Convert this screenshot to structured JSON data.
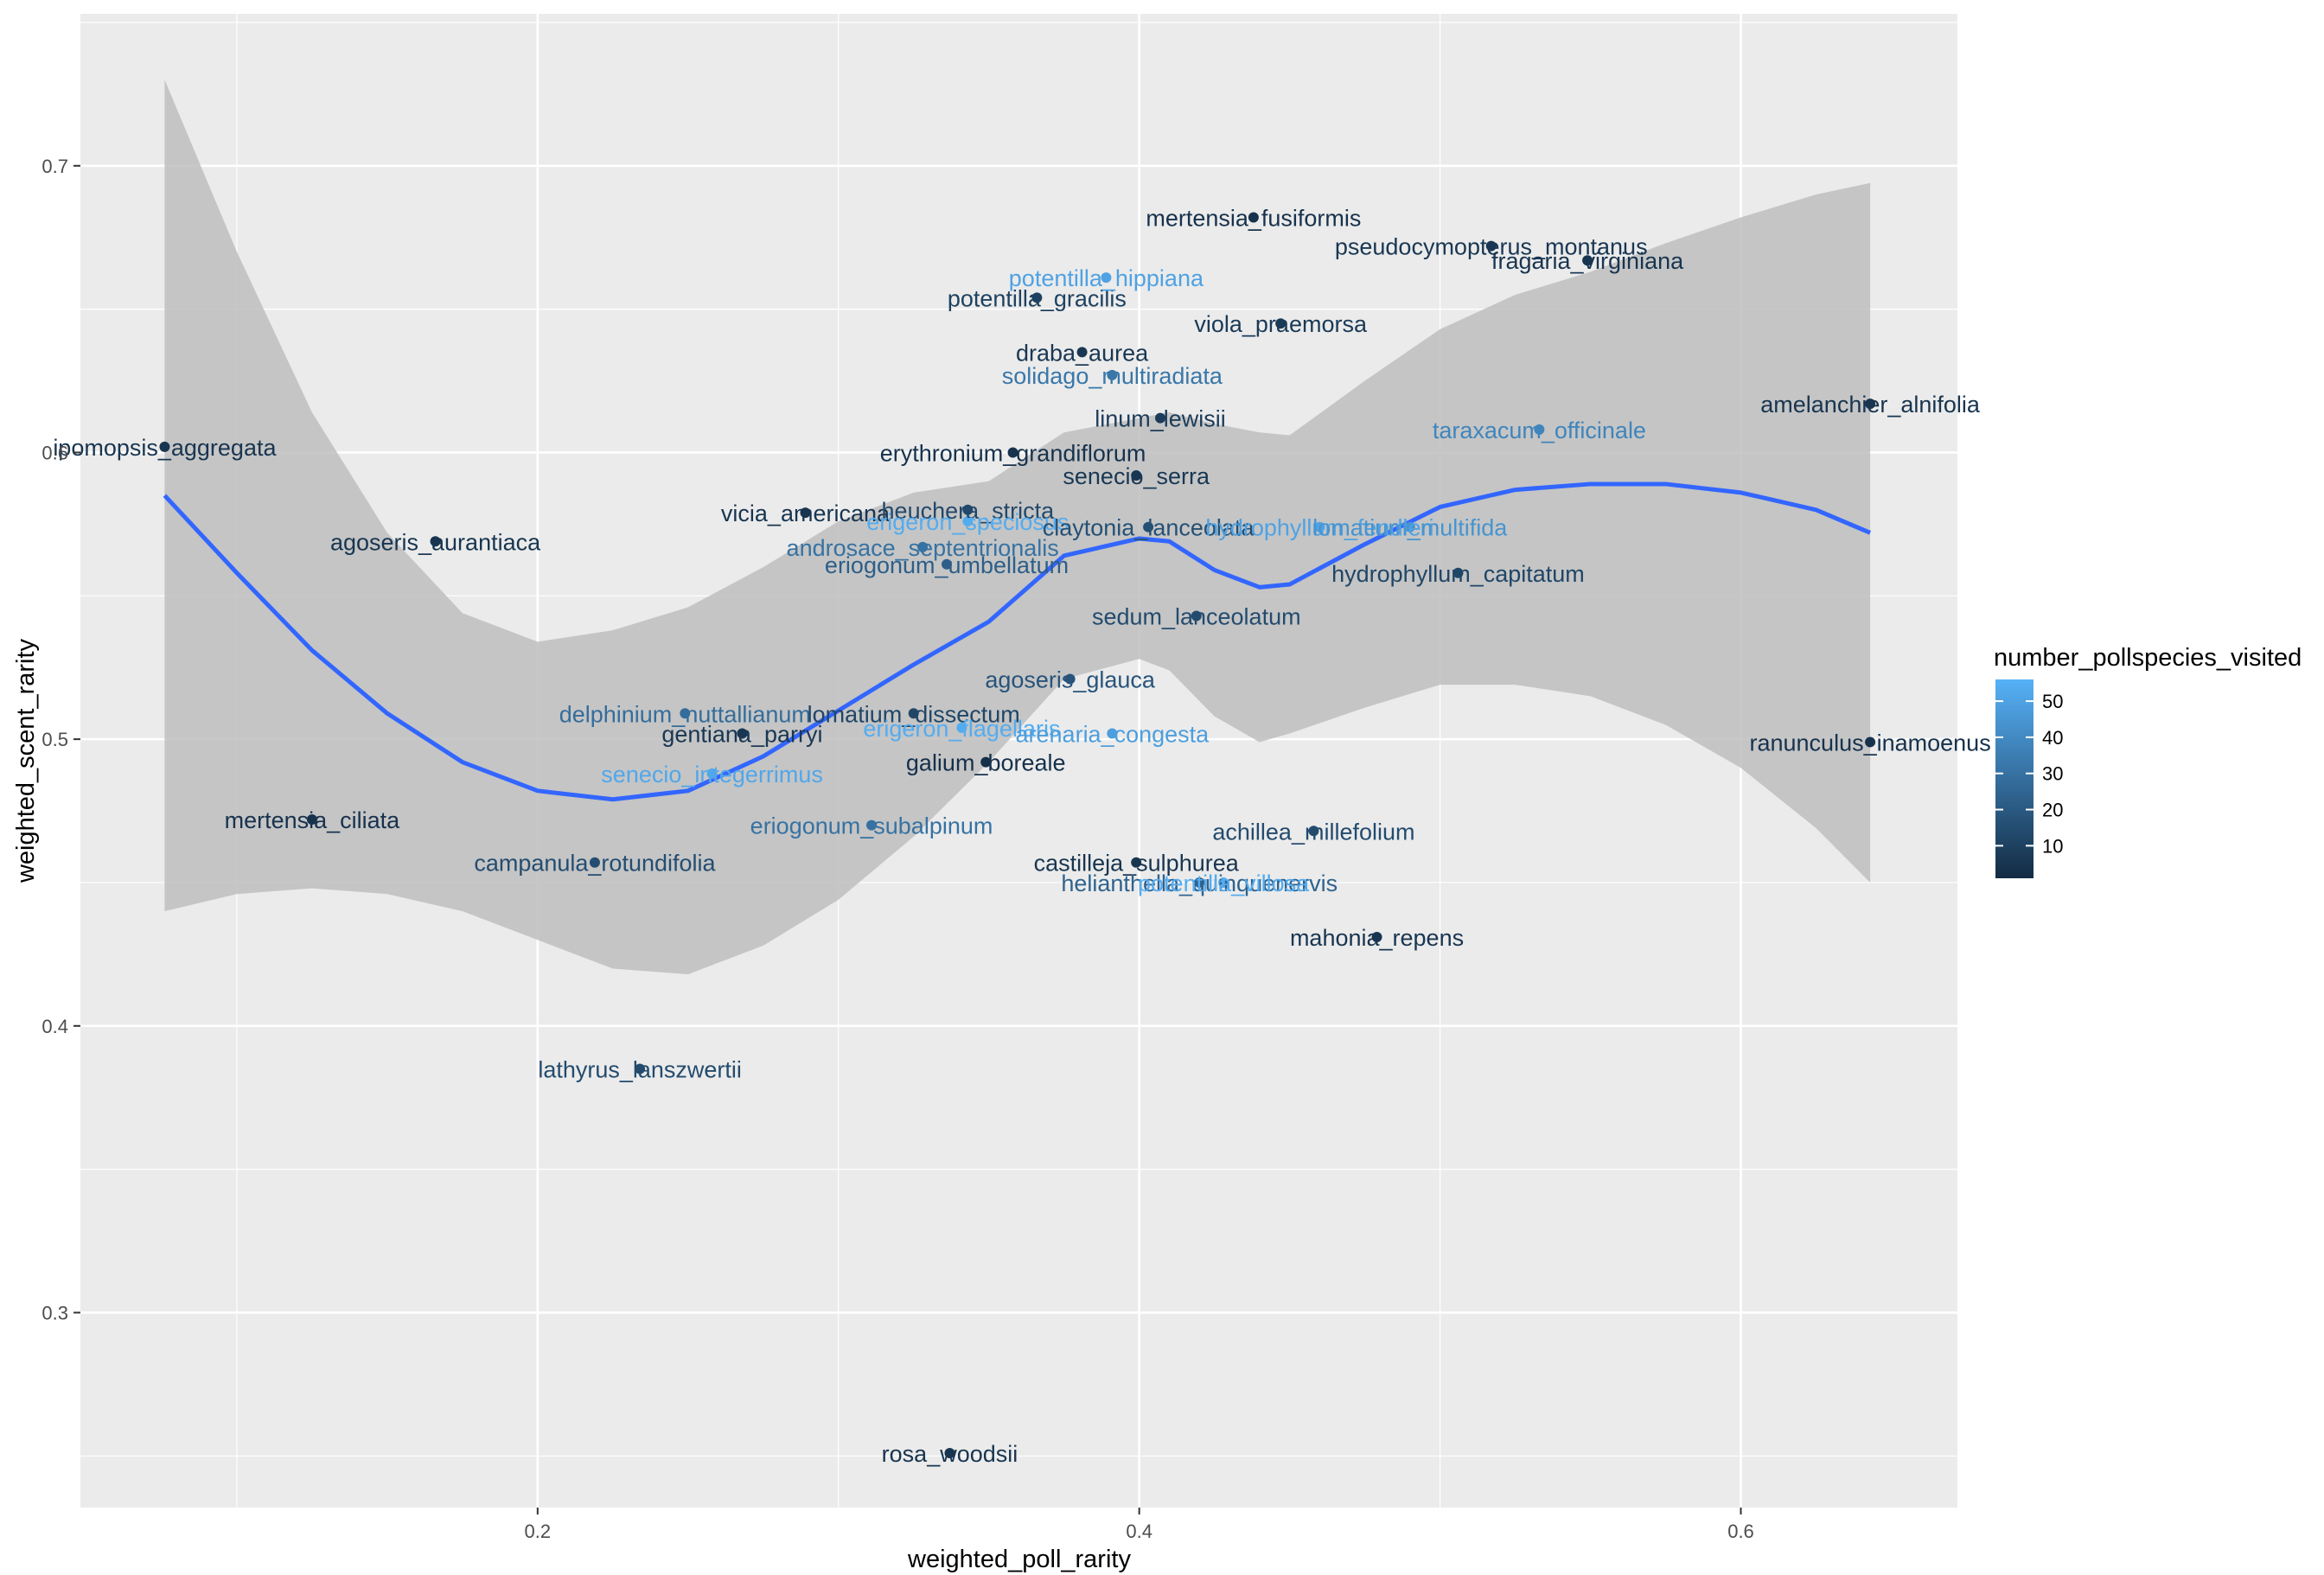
{
  "chart_data": {
    "type": "scatter",
    "xlabel": "weighted_poll_rarity",
    "ylabel": "weighted_scent_rarity",
    "xlim": [
      0.048,
      0.672
    ],
    "ylim": [
      0.232,
      0.753
    ],
    "x_ticks": [
      0.2,
      0.4,
      0.6
    ],
    "x_tick_labels": [
      "0.2",
      "0.4",
      "0.6"
    ],
    "y_ticks": [
      0.3,
      0.4,
      0.5,
      0.6,
      0.7
    ],
    "y_tick_labels": [
      "0.3",
      "0.4",
      "0.5",
      "0.6",
      "0.7"
    ],
    "grid": true,
    "legend": {
      "title": "number_pollspecies_visited",
      "position": "right",
      "min": 1,
      "max": 56,
      "breaks": [
        10,
        20,
        30,
        40,
        50
      ],
      "break_labels": [
        "10",
        "20",
        "30",
        "40",
        "50"
      ],
      "low_color": "#132B43",
      "high_color": "#56B1F7"
    },
    "points": [
      {
        "x": 0.076,
        "y": 0.602,
        "c": 5,
        "label": "ipomopsis_aggregata"
      },
      {
        "x": 0.166,
        "y": 0.569,
        "c": 5,
        "label": "agoseris_aurantiaca"
      },
      {
        "x": 0.125,
        "y": 0.472,
        "c": 4,
        "label": "mertensia_ciliata"
      },
      {
        "x": 0.219,
        "y": 0.457,
        "c": 15,
        "label": "campanula_rotundifolia"
      },
      {
        "x": 0.234,
        "y": 0.385,
        "c": 14,
        "label": "lathyrus_lanszwertii"
      },
      {
        "x": 0.249,
        "y": 0.509,
        "c": 28,
        "label": "delphinium_nuttallianum"
      },
      {
        "x": 0.268,
        "y": 0.502,
        "c": 6,
        "label": "gentiana_parryi"
      },
      {
        "x": 0.258,
        "y": 0.488,
        "c": 52,
        "label": "senecio_integerrimus"
      },
      {
        "x": 0.289,
        "y": 0.579,
        "c": 5,
        "label": "vicia_americana"
      },
      {
        "x": 0.311,
        "y": 0.47,
        "c": 30,
        "label": "eriogonum_subalpinum"
      },
      {
        "x": 0.325,
        "y": 0.509,
        "c": 12,
        "label": "lomatium_dissectum"
      },
      {
        "x": 0.328,
        "y": 0.567,
        "c": 30,
        "label": "androsace_septentrionalis"
      },
      {
        "x": 0.336,
        "y": 0.561,
        "c": 22,
        "label": "eriogonum_umbellatum"
      },
      {
        "x": 0.343,
        "y": 0.58,
        "c": 13,
        "label": "heuchera_stricta"
      },
      {
        "x": 0.343,
        "y": 0.576,
        "c": 54,
        "label": "erigeron_speciosus"
      },
      {
        "x": 0.341,
        "y": 0.504,
        "c": 54,
        "label": "erigeron_flagellaris"
      },
      {
        "x": 0.337,
        "y": 0.251,
        "c": 5,
        "label": "rosa_woodsii"
      },
      {
        "x": 0.349,
        "y": 0.492,
        "c": 3,
        "label": "galium_boreale"
      },
      {
        "x": 0.358,
        "y": 0.6,
        "c": 4,
        "label": "erythronium_grandiflorum"
      },
      {
        "x": 0.366,
        "y": 0.654,
        "c": 10,
        "label": "potentilla_gracilis"
      },
      {
        "x": 0.381,
        "y": 0.635,
        "c": 6,
        "label": "draba_aurea"
      },
      {
        "x": 0.377,
        "y": 0.521,
        "c": 18,
        "label": "agoseris_glauca"
      },
      {
        "x": 0.389,
        "y": 0.661,
        "c": 50,
        "label": "potentilla_hippiana"
      },
      {
        "x": 0.391,
        "y": 0.627,
        "c": 32,
        "label": "solidago_multiradiata"
      },
      {
        "x": 0.391,
        "y": 0.502,
        "c": 48,
        "label": "arenaria_congesta"
      },
      {
        "x": 0.399,
        "y": 0.592,
        "c": 6,
        "label": "senecio_serra"
      },
      {
        "x": 0.399,
        "y": 0.457,
        "c": 5,
        "label": "castilleja_sulphurea"
      },
      {
        "x": 0.403,
        "y": 0.574,
        "c": 16,
        "label": "claytonia_lanceolata"
      },
      {
        "x": 0.407,
        "y": 0.612,
        "c": 8,
        "label": "linum_lewisii"
      },
      {
        "x": 0.419,
        "y": 0.543,
        "c": 14,
        "label": "sedum_lanceolatum"
      },
      {
        "x": 0.42,
        "y": 0.45,
        "c": 24,
        "label": "helianthella_quinquenervis"
      },
      {
        "x": 0.428,
        "y": 0.45,
        "c": 54,
        "label": "potentilla_villosa"
      },
      {
        "x": 0.438,
        "y": 0.682,
        "c": 4,
        "label": "mertensia_fusiformis"
      },
      {
        "x": 0.447,
        "y": 0.645,
        "c": 7,
        "label": "viola_praemorsa"
      },
      {
        "x": 0.458,
        "y": 0.468,
        "c": 14,
        "label": "achillea_millefolium"
      },
      {
        "x": 0.46,
        "y": 0.574,
        "c": 50,
        "label": "hydrophyllum_fendleri"
      },
      {
        "x": 0.479,
        "y": 0.431,
        "c": 5,
        "label": "mahonia_repens"
      },
      {
        "x": 0.49,
        "y": 0.574,
        "c": 44,
        "label": "lomatium_multifida"
      },
      {
        "x": 0.506,
        "y": 0.558,
        "c": 12,
        "label": "hydrophyllum_capitatum"
      },
      {
        "x": 0.517,
        "y": 0.672,
        "c": 6,
        "label": "pseudocymopterus_montanus"
      },
      {
        "x": 0.533,
        "y": 0.608,
        "c": 38,
        "label": "taraxacum_officinale"
      },
      {
        "x": 0.549,
        "y": 0.667,
        "c": 5,
        "label": "fragaria_virginiana"
      },
      {
        "x": 0.643,
        "y": 0.617,
        "c": 5,
        "label": "amelanchier_alnifolia"
      },
      {
        "x": 0.643,
        "y": 0.499,
        "c": 4,
        "label": "ranunculus_inamoenus"
      }
    ],
    "smooth": {
      "method": "loess",
      "color": "#3366FF",
      "ribbon_color": "#BEBEBE",
      "x": [
        0.076,
        0.1,
        0.125,
        0.15,
        0.175,
        0.2,
        0.225,
        0.25,
        0.275,
        0.3,
        0.325,
        0.35,
        0.375,
        0.4,
        0.41,
        0.425,
        0.44,
        0.45,
        0.475,
        0.5,
        0.525,
        0.55,
        0.575,
        0.6,
        0.625,
        0.643
      ],
      "y": [
        0.585,
        0.558,
        0.531,
        0.509,
        0.492,
        0.482,
        0.479,
        0.482,
        0.494,
        0.51,
        0.526,
        0.541,
        0.564,
        0.57,
        0.569,
        0.559,
        0.553,
        0.554,
        0.568,
        0.581,
        0.587,
        0.589,
        0.589,
        0.586,
        0.58,
        0.572
      ],
      "lower": [
        0.44,
        0.446,
        0.448,
        0.446,
        0.44,
        0.43,
        0.42,
        0.418,
        0.428,
        0.444,
        0.466,
        0.492,
        0.521,
        0.528,
        0.524,
        0.508,
        0.499,
        0.502,
        0.511,
        0.519,
        0.519,
        0.515,
        0.505,
        0.49,
        0.469,
        0.45
      ],
      "upper": [
        0.73,
        0.67,
        0.614,
        0.572,
        0.544,
        0.534,
        0.538,
        0.546,
        0.56,
        0.576,
        0.586,
        0.59,
        0.607,
        0.612,
        0.614,
        0.61,
        0.607,
        0.606,
        0.625,
        0.643,
        0.655,
        0.663,
        0.673,
        0.682,
        0.69,
        0.694
      ]
    }
  }
}
